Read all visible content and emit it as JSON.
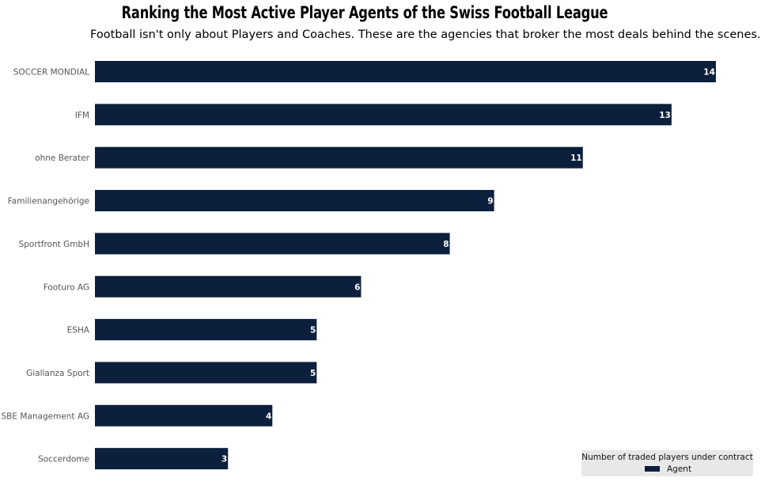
{
  "chart_data": {
    "type": "bar",
    "orientation": "horizontal",
    "title": "Ranking the Most Active Player Agents of the Swiss Football League",
    "subtitle": "Football isn't only about Players and Coaches. These are the agencies that broker the most deals behind the scenes.",
    "categories": [
      "SOCCER MONDIAL",
      "IFM",
      "ohne Berater",
      "Familienangehörige",
      "Sportfront GmbH",
      "Footuro AG",
      "ESHA",
      "Giallanza Sport",
      "SBE Management AG",
      "Soccerdome"
    ],
    "series": [
      {
        "name": "Agent",
        "values": [
          14,
          13,
          11,
          9,
          8,
          6,
          5,
          5,
          4,
          3
        ]
      }
    ],
    "xlim": [
      0,
      15
    ],
    "grid": false,
    "data_labels": true,
    "bar_color": "#0c1f3c",
    "legend": {
      "title": "Number of traded players under contract",
      "position": "bottom-right"
    }
  }
}
